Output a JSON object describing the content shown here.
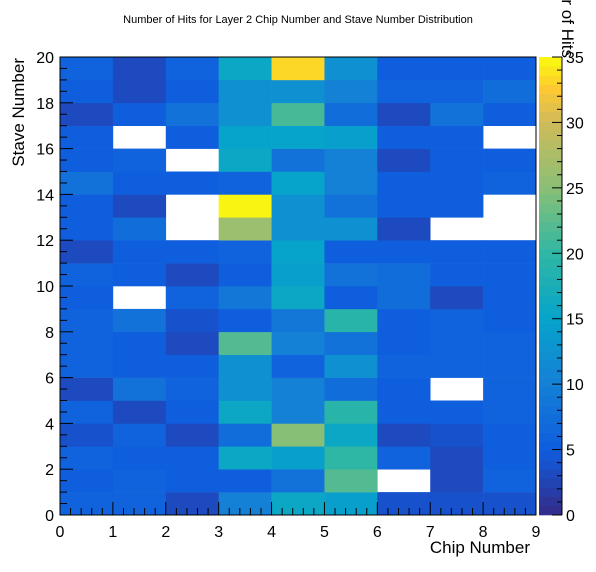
{
  "chart_data": {
    "type": "heatmap",
    "title": "Number of Hits for Layer 2 Chip Number and Stave Number Distribution",
    "xlabel": "Chip Number",
    "ylabel": "Stave Number",
    "zlabel": "Number of Hits",
    "xlim": [
      0,
      9
    ],
    "ylim": [
      0,
      20
    ],
    "zlim": [
      0,
      35
    ],
    "x_ticks": [
      "0",
      "1",
      "2",
      "3",
      "4",
      "5",
      "6",
      "7",
      "8",
      "9"
    ],
    "y_ticks": [
      "0",
      "2",
      "4",
      "6",
      "8",
      "10",
      "12",
      "14",
      "16",
      "18",
      "20"
    ],
    "z_ticks": [
      "0",
      "5",
      "10",
      "15",
      "20",
      "25",
      "30",
      "35"
    ],
    "grid": false,
    "empty_cells_color": "#ffffff",
    "x_bins": [
      0,
      1,
      2,
      3,
      4,
      5,
      6,
      7,
      8
    ],
    "y_bins": [
      0,
      1,
      2,
      3,
      4,
      5,
      6,
      7,
      8,
      9,
      10,
      11,
      12,
      13,
      14,
      15,
      16,
      17,
      18,
      19
    ],
    "values": [
      [
        6,
        6,
        3,
        10,
        16,
        14,
        4,
        4,
        4
      ],
      [
        5,
        6,
        5,
        5,
        8,
        22,
        0,
        3,
        6
      ],
      [
        6,
        5,
        5,
        16,
        14,
        20,
        6,
        3,
        5
      ],
      [
        4,
        6,
        3,
        7,
        25,
        16,
        3,
        4,
        5
      ],
      [
        6,
        3,
        5,
        16,
        10,
        19,
        5,
        5,
        6
      ],
      [
        3,
        8,
        6,
        12,
        10,
        7,
        5,
        0,
        6
      ],
      [
        6,
        5,
        5,
        12,
        6,
        12,
        6,
        6,
        6
      ],
      [
        6,
        5,
        3,
        22,
        10,
        8,
        5,
        6,
        6
      ],
      [
        6,
        8,
        4,
        5,
        9,
        19,
        5,
        6,
        5
      ],
      [
        5,
        0,
        6,
        9,
        16,
        5,
        7,
        3,
        5
      ],
      [
        6,
        5,
        3,
        5,
        14,
        8,
        7,
        5,
        5
      ],
      [
        3,
        5,
        5,
        6,
        15,
        5,
        5,
        5,
        5
      ],
      [
        5,
        7,
        0,
        26,
        12,
        12,
        3,
        0,
        0
      ],
      [
        5,
        3,
        0,
        35,
        12,
        8,
        5,
        5,
        0
      ],
      [
        8,
        5,
        5,
        6,
        15,
        10,
        5,
        5,
        6
      ],
      [
        5,
        6,
        0,
        16,
        8,
        10,
        3,
        5,
        5
      ],
      [
        5,
        0,
        5,
        15,
        15,
        14,
        5,
        5,
        0
      ],
      [
        3,
        5,
        8,
        12,
        21,
        7,
        3,
        8,
        5
      ],
      [
        5,
        3,
        5,
        12,
        12,
        10,
        6,
        6,
        7
      ],
      [
        6,
        3,
        6,
        16,
        33,
        12,
        5,
        5,
        5
      ]
    ]
  }
}
